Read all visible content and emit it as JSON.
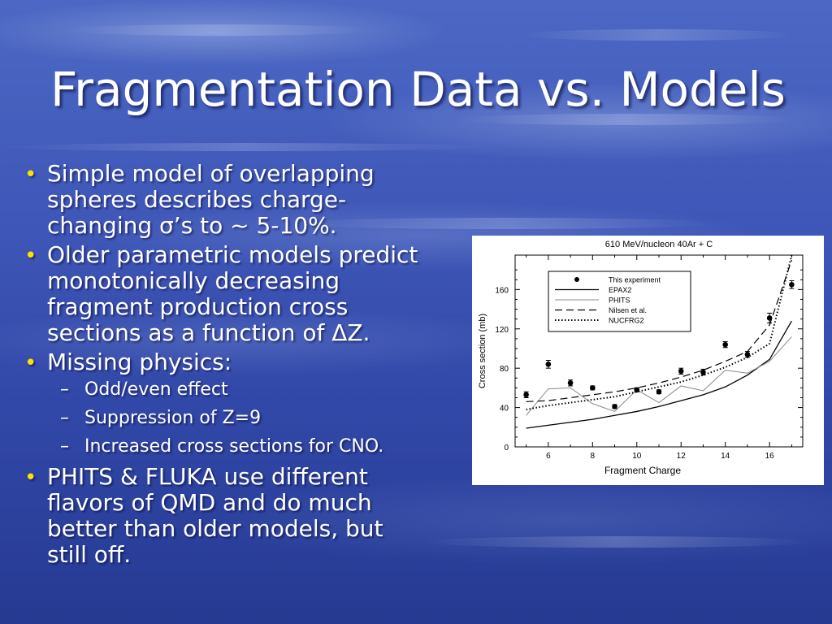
{
  "slide": {
    "title": "Fragmentation Data vs. Models",
    "bullets": [
      {
        "lines": [
          "Simple model of overlapping",
          "spheres describes charge-",
          "changing σ’s to ~ 5-10%."
        ]
      },
      {
        "lines": [
          "Older parametric models predict",
          "monotonically decreasing",
          "fragment production cross",
          "sections as a function of ΔZ."
        ]
      },
      {
        "lines": [
          "Missing physics:"
        ],
        "sub": [
          "Odd/even effect",
          "Suppression of Z=9",
          "Increased cross sections for CNO."
        ]
      },
      {
        "lines": [
          "PHITS & FLUKA use different",
          "flavors of QMD and do much",
          "better than older models, but",
          "still off."
        ]
      }
    ],
    "bullet_color": "#ffe000",
    "sub_marker": "–"
  },
  "chart_data": {
    "type": "line",
    "title": "610 MeV/nucleon  40Ar + C",
    "xlabel": "Fragment Charge",
    "ylabel": "Cross section (mb)",
    "xlim": [
      4.5,
      17.5
    ],
    "ylim": [
      0,
      195
    ],
    "xticks": [
      6,
      8,
      10,
      12,
      14,
      16
    ],
    "yticks": [
      0,
      40,
      80,
      120,
      160
    ],
    "legend_position": "top-left",
    "x": [
      5,
      6,
      7,
      8,
      9,
      10,
      11,
      12,
      13,
      14,
      15,
      16,
      17
    ],
    "points": {
      "name": "This experiment",
      "y": [
        53,
        84,
        65,
        60,
        41,
        58,
        56,
        77,
        76,
        104,
        94,
        131,
        165
      ],
      "err": [
        3,
        4,
        3,
        2,
        2,
        2,
        2,
        3,
        3,
        3,
        3,
        5,
        4
      ]
    },
    "series": [
      {
        "name": "EPAX2",
        "style": "solid",
        "values": [
          19,
          22,
          25,
          28,
          32,
          36,
          41,
          47,
          53,
          61,
          73,
          89,
          128
        ]
      },
      {
        "name": "PHITS",
        "style": "thin",
        "values": [
          32,
          59,
          60,
          44,
          36,
          58,
          45,
          62,
          57,
          78,
          75,
          87,
          112
        ]
      },
      {
        "name": "Nilsen et al.",
        "style": "dashed",
        "values": [
          46,
          47,
          50,
          53,
          56,
          60,
          65,
          71,
          78,
          87,
          97,
          124,
          190
        ]
      },
      {
        "name": "NUCFRG2",
        "style": "dotted",
        "values": [
          38,
          42,
          45,
          48,
          51,
          56,
          61,
          66,
          73,
          81,
          91,
          105,
          195
        ]
      }
    ]
  }
}
